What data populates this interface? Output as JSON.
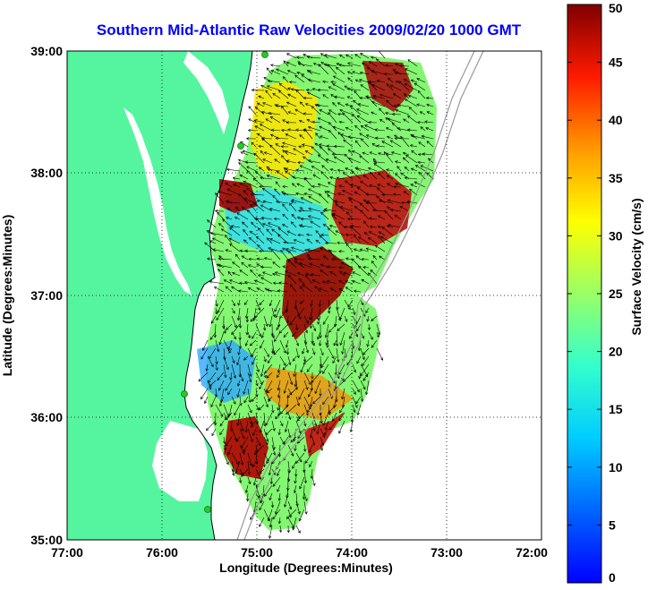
{
  "chart_data": {
    "type": "heatmap",
    "title": "Southern Mid-Atlantic Raw Velocities 2009/02/20 1000 GMT",
    "xlabel": "Longitude (Degrees:Minutes)",
    "ylabel": "Latitude (Degrees:Minutes)",
    "x_ticks": [
      "77:00",
      "76:00",
      "75:00",
      "74:00",
      "73:00",
      "72:00"
    ],
    "y_ticks": [
      "39:00",
      "38:00",
      "37:00",
      "36:00",
      "35:00"
    ],
    "xlim": [
      -77,
      -72
    ],
    "ylim": [
      35,
      39
    ],
    "grid": true,
    "colorbar": {
      "label": "Surface Velocity (cm/s)",
      "ticks": [
        "0",
        "5",
        "10",
        "15",
        "20",
        "25",
        "30",
        "35",
        "40",
        "45",
        "50"
      ],
      "range": [
        0,
        50
      ],
      "colormap": "jet"
    },
    "colors": {
      "land": "#55f5a0",
      "water": "#ffffff",
      "title": "#0000ff",
      "station": "#22cc22"
    }
  }
}
